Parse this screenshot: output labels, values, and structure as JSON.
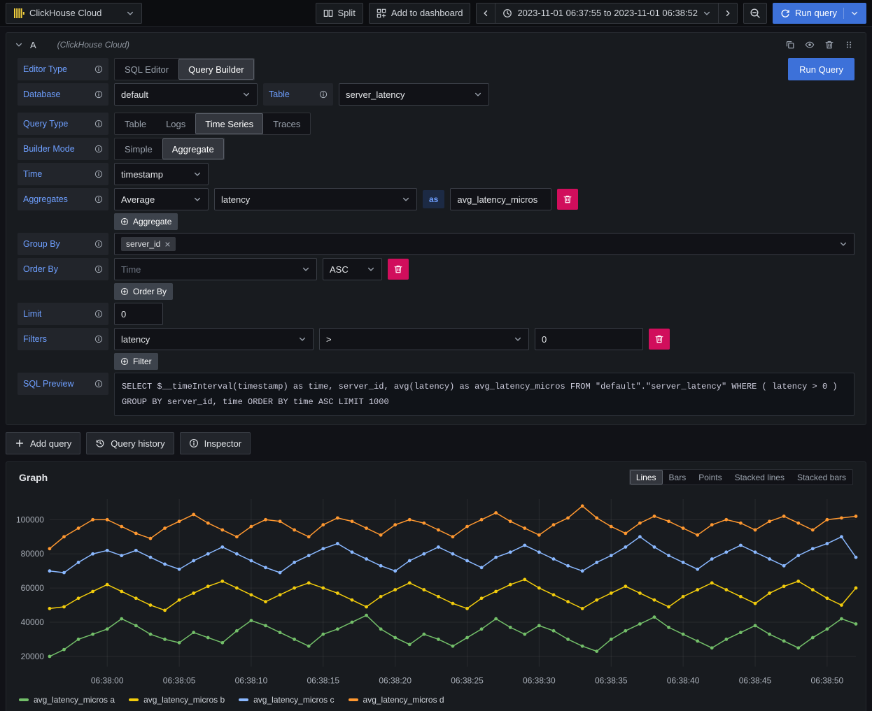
{
  "colors": {
    "accent_blue": "#3d71d9",
    "destructive_red": "#d10e5c",
    "brand_yellow": "#f2cf3e",
    "label_blue": "#6e9fff"
  },
  "topbar": {
    "datasource_label": "ClickHouse Cloud",
    "split_label": "Split",
    "add_dashboard_label": "Add to dashboard",
    "time_range_label": "2023-11-01 06:37:55 to 2023-11-01 06:38:52",
    "run_query_label": "Run query"
  },
  "query_editor": {
    "ref_id": "A",
    "datasource_note": "(ClickHouse Cloud)",
    "run_query_label": "Run Query",
    "fields": {
      "editor_type": {
        "label": "Editor Type",
        "options": [
          "SQL Editor",
          "Query Builder"
        ],
        "selected": "Query Builder"
      },
      "database": {
        "label": "Database",
        "value": "default"
      },
      "table": {
        "label": "Table",
        "value": "server_latency"
      },
      "query_type": {
        "label": "Query Type",
        "options": [
          "Table",
          "Logs",
          "Time Series",
          "Traces"
        ],
        "selected": "Time Series"
      },
      "builder_mode": {
        "label": "Builder Mode",
        "options": [
          "Simple",
          "Aggregate"
        ],
        "selected": "Aggregate"
      },
      "time": {
        "label": "Time",
        "value": "timestamp"
      },
      "aggregates": {
        "label": "Aggregates",
        "function": "Average",
        "column": "latency",
        "as_label": "as",
        "alias": "avg_latency_micros",
        "add_label": "Aggregate"
      },
      "group_by": {
        "label": "Group By",
        "tags": [
          "server_id"
        ]
      },
      "order_by": {
        "label": "Order By",
        "field_placeholder": "Time",
        "direction": "ASC",
        "add_label": "Order By"
      },
      "limit": {
        "label": "Limit",
        "value": "0"
      },
      "filters": {
        "label": "Filters",
        "field": "latency",
        "operator": ">",
        "value": "0",
        "add_label": "Filter"
      },
      "sql_preview": {
        "label": "SQL Preview",
        "sql": "SELECT $__timeInterval(timestamp) as time, server_id, avg(latency) as avg_latency_micros FROM \"default\".\"server_latency\" WHERE ( latency > 0 ) GROUP BY server_id, time ORDER BY time ASC LIMIT 1000"
      }
    }
  },
  "actions": {
    "add_query": "Add query",
    "query_history": "Query history",
    "inspector": "Inspector"
  },
  "graph": {
    "title": "Graph",
    "modes": [
      "Lines",
      "Bars",
      "Points",
      "Stacked lines",
      "Stacked bars"
    ],
    "selected_mode": "Lines"
  },
  "chart_data": {
    "type": "line",
    "title": "Graph",
    "x_start": "06:37:56",
    "x_interval_seconds": 1,
    "x_tick_labels": [
      "06:38:00",
      "06:38:05",
      "06:38:10",
      "06:38:15",
      "06:38:20",
      "06:38:25",
      "06:38:30",
      "06:38:35",
      "06:38:40",
      "06:38:45",
      "06:38:50"
    ],
    "x_first_tick_index": 4,
    "x_tick_step": 5,
    "ylim": [
      14000,
      112000
    ],
    "yticks": [
      20000,
      40000,
      60000,
      80000,
      100000
    ],
    "grid": true,
    "legend_position": "bottom",
    "series": [
      {
        "name": "avg_latency_micros a",
        "color": "#73bf69",
        "values": [
          20000,
          24000,
          30000,
          33000,
          36000,
          42000,
          38000,
          33000,
          30000,
          28000,
          34000,
          31000,
          28000,
          35000,
          41000,
          38000,
          34000,
          30000,
          26000,
          33000,
          36000,
          40000,
          44000,
          36000,
          31000,
          27000,
          33000,
          30000,
          26000,
          31000,
          36000,
          42000,
          37000,
          33000,
          38000,
          35000,
          30000,
          26000,
          23000,
          30000,
          35000,
          39000,
          43000,
          37000,
          33000,
          29000,
          25000,
          30000,
          34000,
          38000,
          33000,
          29000,
          25000,
          31000,
          36000,
          42000,
          39000
        ]
      },
      {
        "name": "avg_latency_micros b",
        "color": "#f2cc0c",
        "values": [
          48000,
          49000,
          54000,
          58000,
          62000,
          58000,
          54000,
          50000,
          47000,
          53000,
          57000,
          61000,
          64000,
          60000,
          56000,
          52000,
          56000,
          60000,
          63000,
          60000,
          57000,
          53000,
          49000,
          55000,
          59000,
          63000,
          59000,
          55000,
          51000,
          48000,
          54000,
          58000,
          62000,
          65000,
          60000,
          56000,
          52000,
          48000,
          53000,
          57000,
          61000,
          57000,
          53000,
          49000,
          55000,
          59000,
          63000,
          59000,
          55000,
          51000,
          57000,
          61000,
          64000,
          59000,
          54000,
          50000,
          60000
        ]
      },
      {
        "name": "avg_latency_micros c",
        "color": "#8ab8ff",
        "values": [
          70000,
          69000,
          75000,
          80000,
          82000,
          79000,
          82000,
          78000,
          74000,
          71000,
          76000,
          80000,
          84000,
          80000,
          76000,
          72000,
          69000,
          75000,
          79000,
          83000,
          86000,
          81000,
          77000,
          73000,
          70000,
          76000,
          80000,
          84000,
          80000,
          76000,
          72000,
          78000,
          81000,
          85000,
          81000,
          77000,
          73000,
          70000,
          75000,
          79000,
          84000,
          90000,
          84000,
          79000,
          75000,
          71000,
          77000,
          81000,
          85000,
          81000,
          77000,
          73000,
          79000,
          83000,
          86000,
          90000,
          78000
        ]
      },
      {
        "name": "avg_latency_micros d",
        "color": "#ff9830",
        "values": [
          83000,
          90000,
          95000,
          100000,
          100000,
          96000,
          92000,
          89000,
          95000,
          99000,
          103000,
          98000,
          94000,
          90000,
          96000,
          100000,
          99000,
          94000,
          90000,
          97000,
          101000,
          99000,
          95000,
          91000,
          97000,
          100000,
          98000,
          94000,
          90000,
          96000,
          100000,
          104000,
          99000,
          95000,
          91000,
          97000,
          101000,
          108000,
          101000,
          96000,
          92000,
          98000,
          102000,
          99000,
          95000,
          91000,
          97000,
          100000,
          98000,
          94000,
          99000,
          102000,
          98000,
          94000,
          100000,
          101000,
          102000
        ]
      }
    ]
  }
}
